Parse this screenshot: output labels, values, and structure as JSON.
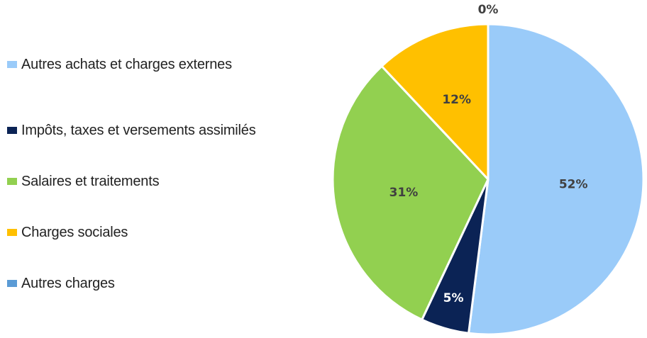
{
  "chart_data": {
    "type": "pie",
    "title": "",
    "legend_position": "left",
    "slices": [
      {
        "label": "Autres achats et charges externes",
        "value": 52,
        "display": "52%",
        "color": "#9ACBF9",
        "label_color": "#404040"
      },
      {
        "label": "Impôts, taxes et versements assimilés",
        "value": 5,
        "display": "5%",
        "color": "#0B2355",
        "label_color": "#ffffff"
      },
      {
        "label": "Salaires et traitements",
        "value": 31,
        "display": "31%",
        "color": "#92D050",
        "label_color": "#404040"
      },
      {
        "label": "Charges sociales",
        "value": 12,
        "display": "12%",
        "color": "#FFC000",
        "label_color": "#404040"
      },
      {
        "label": "Autres charges",
        "value": 0,
        "display": "0%",
        "color": "#5B9BD5",
        "label_color": "#404040"
      }
    ]
  }
}
